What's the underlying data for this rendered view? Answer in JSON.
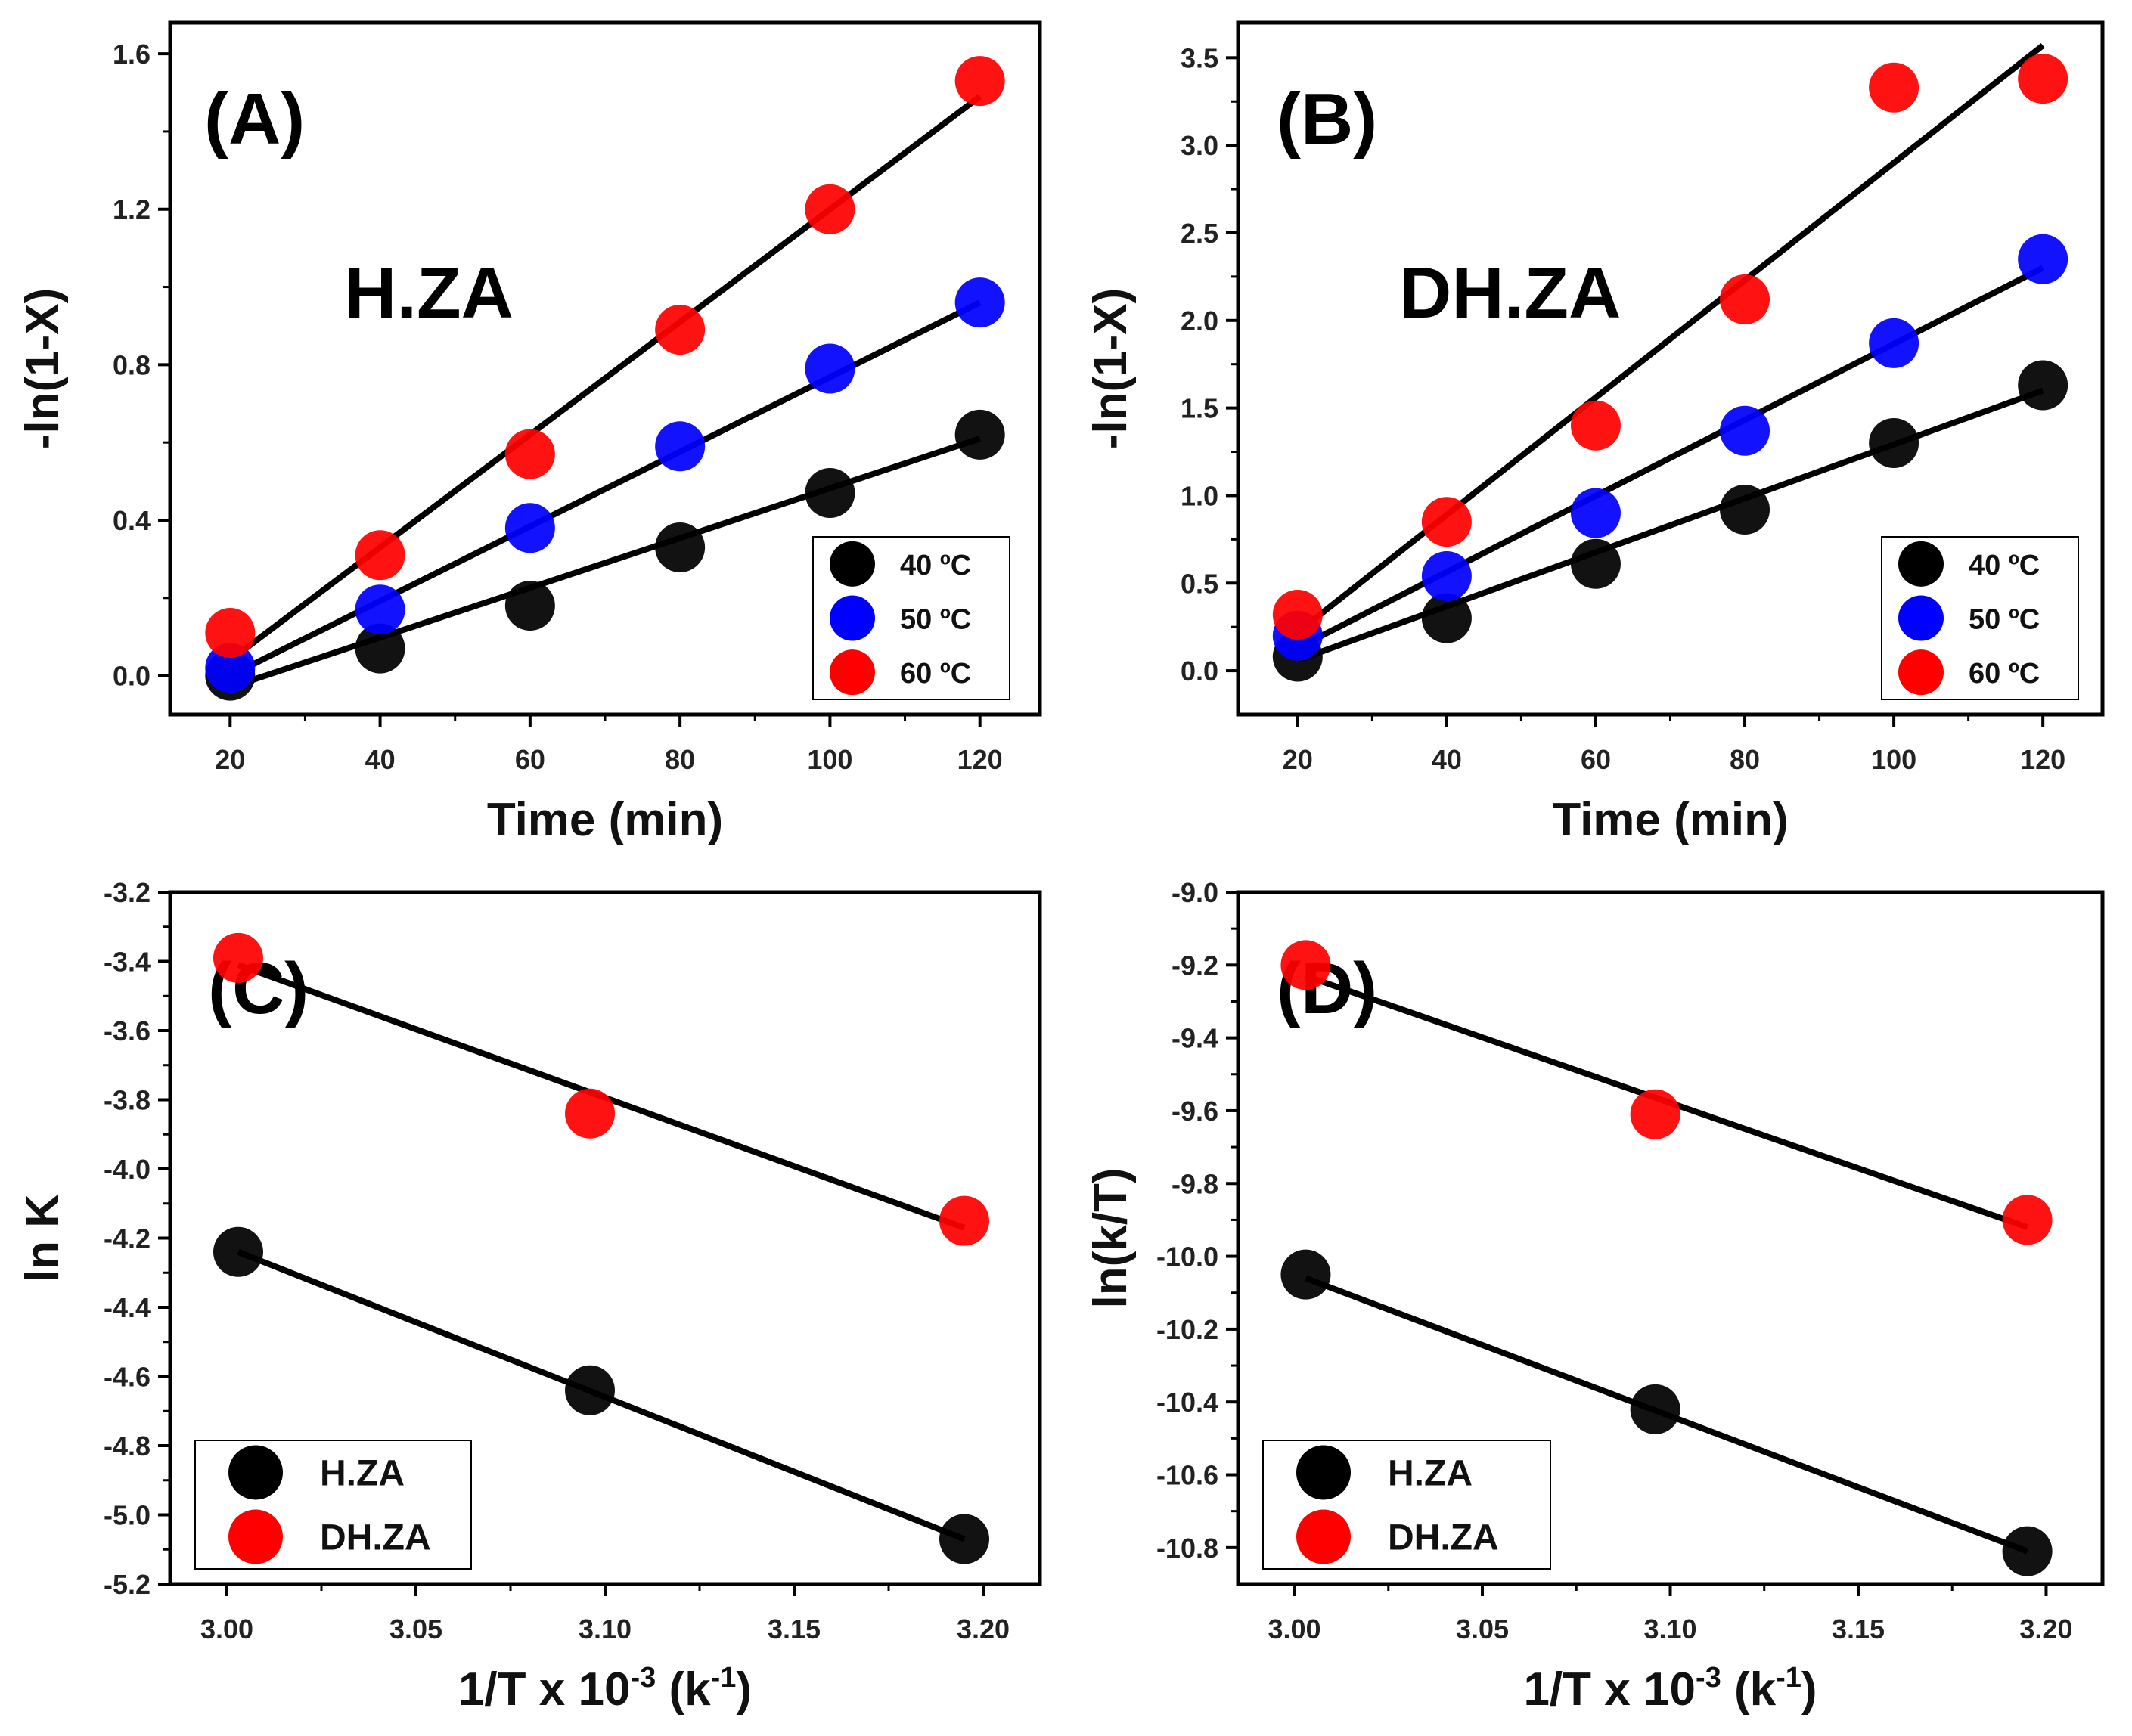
{
  "chart_data": [
    {
      "type": "scatter",
      "panel": "(A)",
      "label": "H.ZA",
      "xlabel": "Time (min)",
      "ylabel": "-ln(1-X)",
      "xlim": [
        12,
        128
      ],
      "ylim": [
        -0.1,
        1.68
      ],
      "xticks": [
        20,
        40,
        60,
        80,
        100,
        120
      ],
      "yticks": [
        0.0,
        0.4,
        0.8,
        1.2,
        1.6
      ],
      "ytick_labels": [
        "0.0",
        "0.4",
        "0.8",
        "1.2",
        "1.6"
      ],
      "legend_position": "bottom-right",
      "series": [
        {
          "name": "40 ºC",
          "color": "#000000",
          "x": [
            20,
            40,
            60,
            80,
            100,
            120
          ],
          "y": [
            0.0,
            0.07,
            0.18,
            0.33,
            0.47,
            0.62
          ],
          "fit": [
            -0.03,
            0.61
          ]
        },
        {
          "name": "50 ºC",
          "color": "#0000ff",
          "x": [
            20,
            40,
            60,
            80,
            100,
            120
          ],
          "y": [
            0.02,
            0.17,
            0.38,
            0.59,
            0.79,
            0.96
          ],
          "fit": [
            0.0,
            0.96
          ]
        },
        {
          "name": "60 ºC",
          "color": "#ff0000",
          "x": [
            20,
            40,
            60,
            80,
            100,
            120
          ],
          "y": [
            0.11,
            0.31,
            0.57,
            0.89,
            1.2,
            1.53
          ],
          "fit": [
            0.04,
            1.49
          ]
        }
      ]
    },
    {
      "type": "scatter",
      "panel": "(B)",
      "label": "DH.ZA",
      "xlabel": "Time (min)",
      "ylabel": "-ln(1-X)",
      "xlim": [
        12,
        128
      ],
      "ylim": [
        -0.25,
        3.7
      ],
      "xticks": [
        20,
        40,
        60,
        80,
        100,
        120
      ],
      "yticks": [
        0.0,
        0.5,
        1.0,
        1.5,
        2.0,
        2.5,
        3.0,
        3.5
      ],
      "ytick_labels": [
        "0.0",
        "0.5",
        "1.0",
        "1.5",
        "2.0",
        "2.5",
        "3.0",
        "3.5"
      ],
      "legend_position": "bottom-right",
      "series": [
        {
          "name": "40 ºC",
          "color": "#000000",
          "x": [
            20,
            40,
            60,
            80,
            100,
            120
          ],
          "y": [
            0.08,
            0.3,
            0.61,
            0.92,
            1.3,
            1.63
          ],
          "fit": [
            0.06,
            1.6
          ]
        },
        {
          "name": "50 ºC",
          "color": "#0000ff",
          "x": [
            20,
            40,
            60,
            80,
            100,
            120
          ],
          "y": [
            0.2,
            0.54,
            0.9,
            1.37,
            1.87,
            2.35
          ],
          "fit": [
            0.13,
            2.3
          ]
        },
        {
          "name": "60 ºC",
          "color": "#ff0000",
          "x": [
            20,
            40,
            60,
            80,
            100,
            120
          ],
          "y": [
            0.32,
            0.85,
            1.4,
            2.12,
            3.33,
            3.38
          ],
          "fit": [
            0.22,
            3.57
          ]
        }
      ]
    },
    {
      "type": "scatter",
      "panel": "(C)",
      "xlabel": "1/T x 10",
      "xlabel_sup": "-3",
      "xlabel_unit": " (k",
      "xlabel_unit_sup": "-1",
      "xlabel_end": ")",
      "ylabel": "ln K",
      "xlim": [
        2.985,
        3.215
      ],
      "ylim": [
        -5.2,
        -3.2
      ],
      "xticks": [
        3.0,
        3.05,
        3.1,
        3.15,
        3.2
      ],
      "xtick_labels": [
        "3.00",
        "3.05",
        "3.10",
        "3.15",
        "3.20"
      ],
      "yticks": [
        -5.2,
        -5.0,
        -4.8,
        -4.6,
        -4.4,
        -4.2,
        -4.0,
        -3.8,
        -3.6,
        -3.4,
        -3.2
      ],
      "ytick_labels": [
        "-5.2",
        "-5.0",
        "-4.8",
        "-4.6",
        "-4.4",
        "-4.2",
        "-4.0",
        "-3.8",
        "-3.6",
        "-3.4",
        "-3.2"
      ],
      "legend_position": "bottom-left",
      "series": [
        {
          "name": "H.ZA",
          "color": "#000000",
          "x": [
            3.003,
            3.096,
            3.195
          ],
          "y": [
            -4.24,
            -4.64,
            -5.07
          ],
          "fit": [
            -4.24,
            -5.07
          ]
        },
        {
          "name": "DH.ZA",
          "color": "#ff0000",
          "x": [
            3.003,
            3.096,
            3.195
          ],
          "y": [
            -3.39,
            -3.84,
            -4.15
          ],
          "fit": [
            -3.41,
            -4.17
          ]
        }
      ]
    },
    {
      "type": "scatter",
      "panel": "(D)",
      "xlabel": "1/T x 10",
      "xlabel_sup": "-3",
      "xlabel_unit": " (k",
      "xlabel_unit_sup": "-1",
      "xlabel_end": ")",
      "ylabel": "ln(k/T)",
      "xlim": [
        2.985,
        3.215
      ],
      "ylim": [
        -10.9,
        -9.0
      ],
      "xticks": [
        3.0,
        3.05,
        3.1,
        3.15,
        3.2
      ],
      "xtick_labels": [
        "3.00",
        "3.05",
        "3.10",
        "3.15",
        "3.20"
      ],
      "yticks": [
        -10.8,
        -10.6,
        -10.4,
        -10.2,
        -10.0,
        -9.8,
        -9.6,
        -9.4,
        -9.2,
        -9.0
      ],
      "ytick_labels": [
        "-10.8",
        "-10.6",
        "-10.4",
        "-10.2",
        "-10.0",
        "-9.8",
        "-9.6",
        "-9.4",
        "-9.2",
        "-9.0"
      ],
      "legend_position": "bottom-left",
      "series": [
        {
          "name": "H.ZA",
          "color": "#000000",
          "x": [
            3.003,
            3.096,
            3.195
          ],
          "y": [
            -10.05,
            -10.42,
            -10.81
          ],
          "fit": [
            -10.06,
            -10.81
          ]
        },
        {
          "name": "DH.ZA",
          "color": "#ff0000",
          "x": [
            3.003,
            3.096,
            3.195
          ],
          "y": [
            -9.2,
            -9.61,
            -9.9
          ],
          "fit": [
            -9.23,
            -9.92
          ]
        }
      ]
    }
  ]
}
